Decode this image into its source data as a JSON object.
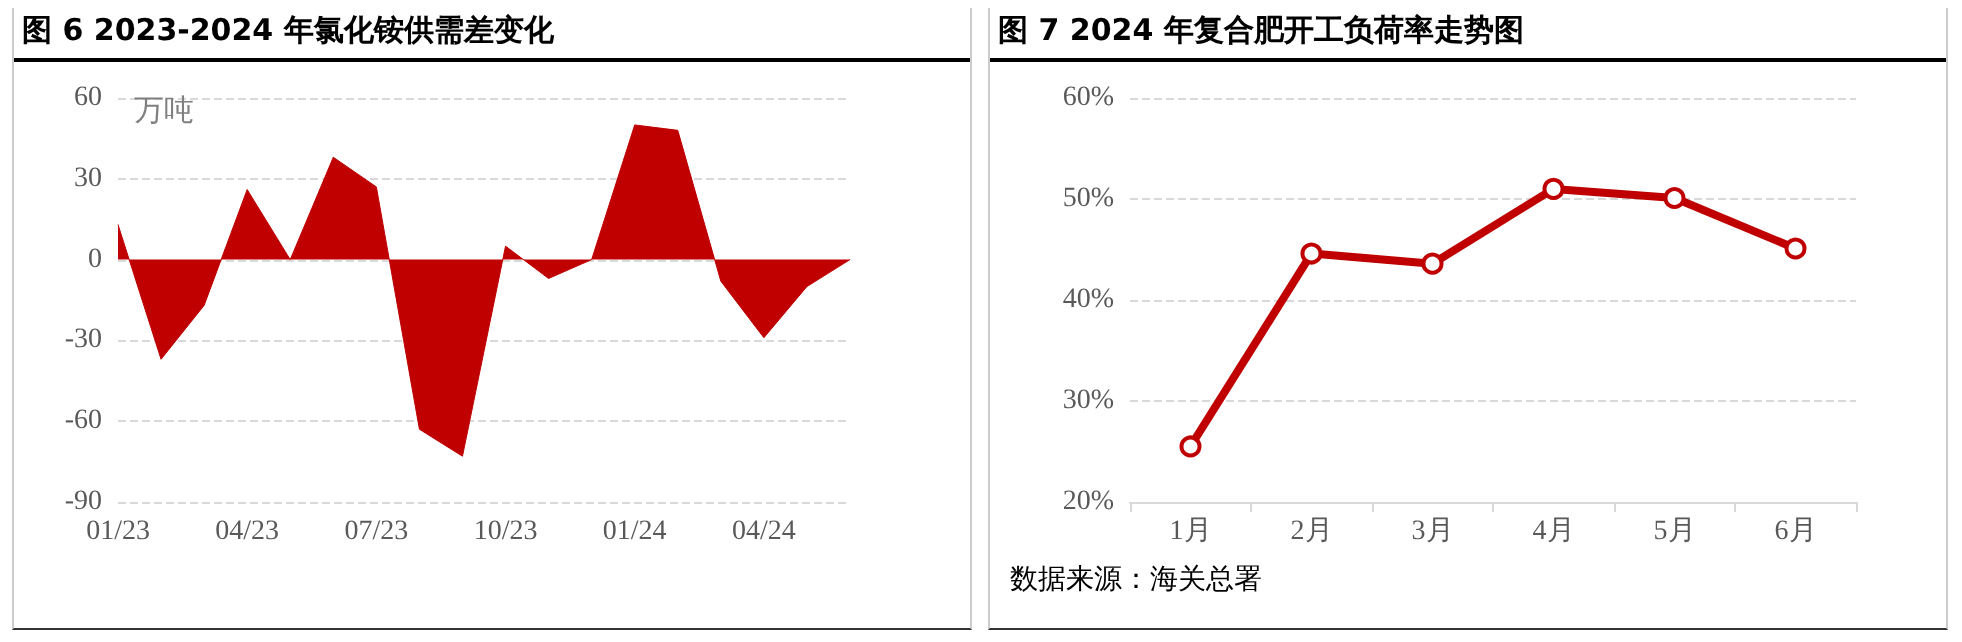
{
  "chart_data": [
    {
      "type": "area",
      "title": "图 6 2023-2024 年氯化铵供需差变化",
      "ylabel": "万吨",
      "categories": [
        "01/23",
        null,
        null,
        "04/23",
        null,
        null,
        "07/23",
        null,
        null,
        "10/23",
        null,
        null,
        "01/24",
        null,
        null,
        "04/24",
        null,
        null
      ],
      "series": [
        {
          "color": "#c00000",
          "values": [
            13,
            -37,
            -17,
            26,
            0,
            38,
            27,
            -63,
            -73,
            5,
            -7,
            0,
            50,
            48,
            -8,
            -29,
            -10,
            0
          ]
        }
      ],
      "ylim": [
        -90,
        60
      ],
      "yticks": [
        -90,
        -60,
        -30,
        0,
        30,
        60
      ],
      "grid": "y"
    },
    {
      "type": "line",
      "title": "图 7 2024 年复合肥开工负荷率走势图",
      "categories": [
        "1月",
        "2月",
        "3月",
        "4月",
        "5月",
        "6月"
      ],
      "series": [
        {
          "color": "#c00000",
          "values": [
            25.5,
            44.6,
            43.6,
            51.0,
            50.1,
            45.1
          ]
        }
      ],
      "ylim": [
        20,
        60
      ],
      "yticks": [
        {
          "value": 20,
          "label": "20%"
        },
        {
          "value": 30,
          "label": "30%"
        },
        {
          "value": 40,
          "label": "40%"
        },
        {
          "value": 50,
          "label": "50%"
        },
        {
          "value": 60,
          "label": "60%"
        }
      ],
      "grid": "y",
      "marker": "circle",
      "line_style": "solid",
      "annotations": [
        "数据来源：海关总署"
      ]
    }
  ]
}
